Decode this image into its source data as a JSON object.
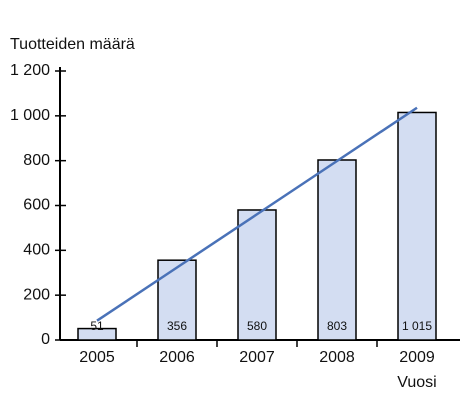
{
  "chart_data": {
    "type": "bar",
    "title": "Tuotteiden määrä",
    "xlabel": "Vuosi",
    "categories": [
      "2005",
      "2006",
      "2007",
      "2008",
      "2009"
    ],
    "values": [
      51,
      356,
      580,
      803,
      1015
    ],
    "value_labels": [
      "51",
      "356",
      "580",
      "803",
      "1 015"
    ],
    "color": "#d3ddf2",
    "trend": {
      "color": "#4a72b8",
      "values": [
        86,
        323.5,
        561,
        798.5,
        1036
      ]
    },
    "ylim": [
      0,
      1200
    ],
    "yticks": [
      0,
      200,
      400,
      600,
      800,
      {
        "value": 1000,
        "label": "1 000"
      },
      {
        "value": 1200,
        "label": "1 200"
      }
    ]
  }
}
